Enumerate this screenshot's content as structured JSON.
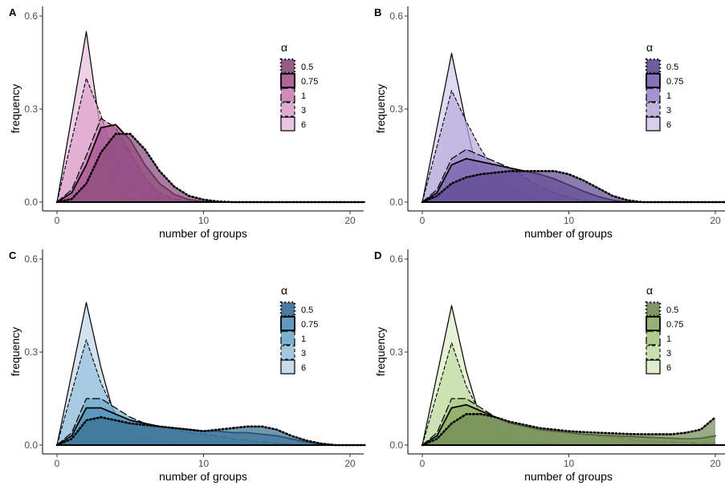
{
  "chart_data": [
    {
      "panel_label": "A",
      "type": "area",
      "xlabel": "number of groups",
      "ylabel": "frequency",
      "xlim": [
        0,
        21
      ],
      "ylim": [
        0,
        0.6
      ],
      "xticks": [
        0,
        10,
        20
      ],
      "yticks": [
        0.0,
        0.3,
        0.6
      ],
      "xtick_labels": [
        "0",
        "10",
        "20"
      ],
      "ytick_labels": [
        "0.0",
        "0.3",
        "0.6"
      ],
      "grid": false,
      "legend": {
        "title": "α",
        "position": "right",
        "labels": [
          "0.5",
          "0.75",
          "1",
          "3",
          "6"
        ]
      },
      "series": [
        {
          "name": "6",
          "line": "solid",
          "color": "#e8bfdc",
          "x": [
            0,
            2,
            3,
            4,
            5,
            6,
            21
          ],
          "y": [
            0,
            0.55,
            0.22,
            0.04,
            0.005,
            0,
            0
          ]
        },
        {
          "name": "3",
          "line": "dashed",
          "color": "#dca3cc",
          "x": [
            0,
            2,
            3,
            4,
            5,
            6,
            7,
            8,
            21
          ],
          "y": [
            0,
            0.4,
            0.28,
            0.13,
            0.05,
            0.015,
            0.004,
            0,
            0
          ]
        },
        {
          "name": "1",
          "line": "longdash",
          "color": "#c97eb6",
          "x": [
            0,
            1,
            2,
            3,
            4,
            5,
            6,
            7,
            8,
            9,
            10,
            21
          ],
          "y": [
            0,
            0.04,
            0.15,
            0.27,
            0.24,
            0.16,
            0.08,
            0.03,
            0.01,
            0.003,
            0,
            0
          ]
        },
        {
          "name": "0.75",
          "line": "solid-thick",
          "color": "#a8558f",
          "x": [
            0,
            1,
            2,
            3,
            4,
            5,
            6,
            7,
            8,
            9,
            10,
            11,
            21
          ],
          "y": [
            0,
            0.03,
            0.12,
            0.24,
            0.25,
            0.2,
            0.12,
            0.06,
            0.025,
            0.008,
            0.002,
            0,
            0
          ]
        },
        {
          "name": "0.5",
          "line": "dotted",
          "color": "#8a4a7d",
          "x": [
            0,
            1,
            2,
            3,
            4,
            5,
            6,
            7,
            8,
            9,
            10,
            11,
            12,
            21
          ],
          "y": [
            0,
            0.01,
            0.06,
            0.16,
            0.22,
            0.22,
            0.17,
            0.1,
            0.05,
            0.02,
            0.008,
            0.002,
            0,
            0
          ]
        }
      ]
    },
    {
      "panel_label": "B",
      "type": "area",
      "xlabel": "number of groups",
      "ylabel": "frequency",
      "xlim": [
        0,
        21
      ],
      "ylim": [
        0,
        0.6
      ],
      "xticks": [
        0,
        10,
        20
      ],
      "yticks": [
        0.0,
        0.3,
        0.6
      ],
      "xtick_labels": [
        "0",
        "10",
        "20"
      ],
      "ytick_labels": [
        "0.0",
        "0.3",
        "0.6"
      ],
      "grid": false,
      "legend": {
        "title": "α",
        "position": "right",
        "labels": [
          "0.5",
          "0.75",
          "1",
          "3",
          "6"
        ]
      },
      "series": [
        {
          "name": "6",
          "line": "solid",
          "color": "#d3cbeb",
          "x": [
            0,
            2,
            3,
            4,
            5,
            6,
            21
          ],
          "y": [
            0,
            0.48,
            0.25,
            0.05,
            0.01,
            0,
            0
          ]
        },
        {
          "name": "3",
          "line": "dashed",
          "color": "#b9acdc",
          "x": [
            0,
            2,
            3,
            4,
            5,
            6,
            7,
            8,
            9,
            21
          ],
          "y": [
            0,
            0.36,
            0.26,
            0.17,
            0.1,
            0.05,
            0.02,
            0.006,
            0,
            0
          ]
        },
        {
          "name": "1",
          "line": "longdash",
          "color": "#9a87c7",
          "x": [
            0,
            1,
            2,
            3,
            4,
            5,
            6,
            7,
            8,
            9,
            10,
            11,
            12,
            13,
            21
          ],
          "y": [
            0,
            0.04,
            0.14,
            0.17,
            0.15,
            0.13,
            0.11,
            0.08,
            0.05,
            0.03,
            0.015,
            0.006,
            0.002,
            0,
            0
          ]
        },
        {
          "name": "0.75",
          "line": "solid-thick",
          "color": "#7a62ae",
          "x": [
            0,
            1,
            2,
            3,
            4,
            5,
            6,
            7,
            8,
            9,
            10,
            11,
            12,
            13,
            14,
            21
          ],
          "y": [
            0,
            0.03,
            0.12,
            0.14,
            0.13,
            0.12,
            0.11,
            0.1,
            0.09,
            0.075,
            0.055,
            0.035,
            0.018,
            0.006,
            0,
            0
          ]
        },
        {
          "name": "0.5",
          "line": "dotted",
          "color": "#5f4a8f",
          "x": [
            0,
            1,
            2,
            3,
            4,
            5,
            6,
            7,
            8,
            9,
            10,
            11,
            12,
            13,
            14,
            15,
            21
          ],
          "y": [
            0,
            0.02,
            0.06,
            0.08,
            0.09,
            0.095,
            0.1,
            0.1,
            0.1,
            0.1,
            0.09,
            0.07,
            0.045,
            0.02,
            0.006,
            0,
            0
          ]
        }
      ]
    },
    {
      "panel_label": "C",
      "type": "area",
      "xlabel": "number of groups",
      "ylabel": "frequency",
      "xlim": [
        0,
        21
      ],
      "ylim": [
        0,
        0.6
      ],
      "xticks": [
        0,
        10,
        20
      ],
      "yticks": [
        0.0,
        0.3,
        0.6
      ],
      "xtick_labels": [
        "0",
        "10",
        "20"
      ],
      "ytick_labels": [
        "0.0",
        "0.3",
        "0.6"
      ],
      "grid": false,
      "legend": {
        "title": "α",
        "position": "right",
        "labels": [
          "0.5",
          "0.75",
          "1",
          "3",
          "6"
        ]
      },
      "series": [
        {
          "name": "6",
          "line": "solid",
          "color": "#c2d6e8",
          "x": [
            0,
            2,
            3,
            4,
            5,
            6,
            7,
            8,
            21
          ],
          "y": [
            0,
            0.46,
            0.25,
            0.08,
            0.03,
            0.01,
            0.003,
            0,
            0
          ]
        },
        {
          "name": "3",
          "line": "dashed",
          "color": "#98c2dd",
          "x": [
            0,
            2,
            3,
            4,
            5,
            6,
            7,
            8,
            9,
            10,
            11,
            21
          ],
          "y": [
            0,
            0.34,
            0.2,
            0.1,
            0.05,
            0.025,
            0.012,
            0.005,
            0.002,
            0.001,
            0,
            0
          ]
        },
        {
          "name": "1",
          "line": "longdash",
          "color": "#6fa8cb",
          "x": [
            0,
            1,
            2,
            3,
            4,
            5,
            6,
            7,
            8,
            9,
            10,
            11,
            12,
            13,
            14,
            15,
            16,
            17,
            21
          ],
          "y": [
            0,
            0.04,
            0.15,
            0.15,
            0.12,
            0.09,
            0.07,
            0.06,
            0.05,
            0.04,
            0.035,
            0.03,
            0.02,
            0.015,
            0.01,
            0.006,
            0.003,
            0,
            0
          ]
        },
        {
          "name": "0.75",
          "line": "solid-thick",
          "color": "#4f8fb8",
          "x": [
            0,
            1,
            2,
            3,
            4,
            5,
            6,
            7,
            8,
            9,
            10,
            11,
            12,
            13,
            14,
            15,
            16,
            17,
            18,
            19,
            21
          ],
          "y": [
            0,
            0.03,
            0.12,
            0.12,
            0.1,
            0.08,
            0.07,
            0.06,
            0.055,
            0.05,
            0.045,
            0.045,
            0.04,
            0.04,
            0.035,
            0.03,
            0.02,
            0.01,
            0.004,
            0,
            0
          ]
        },
        {
          "name": "0.5",
          "line": "dotted",
          "color": "#3a6f93",
          "x": [
            0,
            1,
            2,
            3,
            4,
            5,
            6,
            7,
            8,
            9,
            10,
            11,
            12,
            13,
            14,
            15,
            16,
            17,
            18,
            19,
            21
          ],
          "y": [
            0,
            0.02,
            0.08,
            0.09,
            0.08,
            0.07,
            0.065,
            0.06,
            0.055,
            0.05,
            0.045,
            0.05,
            0.055,
            0.06,
            0.06,
            0.05,
            0.03,
            0.015,
            0.005,
            0,
            0
          ]
        }
      ]
    },
    {
      "panel_label": "D",
      "type": "area",
      "xlabel": "number of groups",
      "ylabel": "frequency",
      "xlim": [
        0,
        20.8
      ],
      "ylim": [
        0,
        0.6
      ],
      "xticks": [
        0,
        10,
        20
      ],
      "yticks": [
        0.0,
        0.3,
        0.6
      ],
      "xtick_labels": [
        "0",
        "10",
        "20"
      ],
      "ytick_labels": [
        "0.0",
        "0.3",
        "0.6"
      ],
      "grid": false,
      "legend": {
        "title": "α",
        "position": "right",
        "labels": [
          "0.5",
          "0.75",
          "1",
          "3",
          "6"
        ]
      },
      "series": [
        {
          "name": "6",
          "line": "solid",
          "color": "#dcebc6",
          "x": [
            0,
            2,
            3,
            4,
            5,
            6,
            7,
            8,
            20
          ],
          "y": [
            0,
            0.45,
            0.24,
            0.08,
            0.03,
            0.01,
            0.003,
            0,
            0
          ]
        },
        {
          "name": "3",
          "line": "dashed",
          "color": "#c3dca5",
          "x": [
            0,
            2,
            3,
            4,
            5,
            6,
            7,
            8,
            9,
            10,
            11,
            20
          ],
          "y": [
            0,
            0.33,
            0.19,
            0.1,
            0.05,
            0.025,
            0.012,
            0.005,
            0.002,
            0.001,
            0,
            0
          ]
        },
        {
          "name": "1",
          "line": "longdash",
          "color": "#a6c77f",
          "x": [
            0,
            1,
            2,
            3,
            4,
            5,
            6,
            7,
            8,
            9,
            10,
            11,
            12,
            13,
            14,
            15,
            16,
            17,
            18,
            19,
            20
          ],
          "y": [
            0,
            0.04,
            0.15,
            0.15,
            0.12,
            0.09,
            0.07,
            0.06,
            0.05,
            0.045,
            0.04,
            0.035,
            0.03,
            0.025,
            0.02,
            0.015,
            0.012,
            0.01,
            0.008,
            0.006,
            0.005
          ]
        },
        {
          "name": "0.75",
          "line": "solid-thick",
          "color": "#8aa864",
          "x": [
            0,
            1,
            2,
            3,
            4,
            5,
            6,
            7,
            8,
            9,
            10,
            11,
            12,
            13,
            14,
            15,
            16,
            17,
            18,
            19,
            20
          ],
          "y": [
            0,
            0.03,
            0.12,
            0.13,
            0.11,
            0.09,
            0.07,
            0.06,
            0.05,
            0.045,
            0.04,
            0.035,
            0.032,
            0.03,
            0.028,
            0.026,
            0.024,
            0.022,
            0.02,
            0.022,
            0.03
          ]
        },
        {
          "name": "0.5",
          "line": "dotted",
          "color": "#738a57",
          "x": [
            0,
            1,
            2,
            3,
            4,
            5,
            6,
            7,
            8,
            9,
            10,
            11,
            12,
            13,
            14,
            15,
            16,
            17,
            18,
            19,
            20
          ],
          "y": [
            0,
            0.02,
            0.07,
            0.1,
            0.1,
            0.09,
            0.075,
            0.065,
            0.055,
            0.05,
            0.045,
            0.042,
            0.04,
            0.038,
            0.036,
            0.035,
            0.035,
            0.035,
            0.04,
            0.05,
            0.09
          ]
        }
      ]
    }
  ]
}
